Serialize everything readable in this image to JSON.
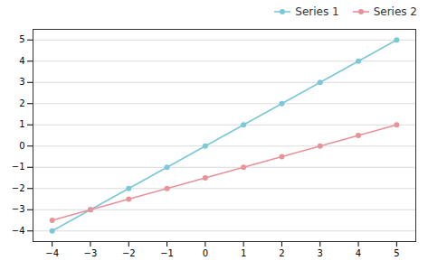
{
  "chart_data": {
    "type": "line",
    "x": [
      -4,
      -3,
      -2,
      -1,
      0,
      1,
      2,
      3,
      4,
      5
    ],
    "series": [
      {
        "name": "Series 1",
        "color": "#7BC8D8",
        "values": [
          -4,
          -3,
          -2,
          -1,
          0,
          1,
          2,
          3,
          4,
          5
        ]
      },
      {
        "name": "Series 2",
        "color": "#E8929A",
        "values": [
          -3.5,
          -3.0,
          -2.5,
          -2.0,
          -1.5,
          -1.0,
          -0.5,
          0.0,
          0.5,
          1.0
        ]
      }
    ],
    "marker": "o",
    "xlim": [
      -4.5,
      5.5
    ],
    "ylim": [
      -4.5,
      5.5
    ],
    "xticks": [
      -4,
      -3,
      -2,
      -1,
      0,
      1,
      2,
      3,
      4,
      5
    ],
    "yticks": [
      -4,
      -3,
      -2,
      -1,
      0,
      1,
      2,
      3,
      4,
      5
    ],
    "grid": true,
    "legend": "upper right"
  }
}
